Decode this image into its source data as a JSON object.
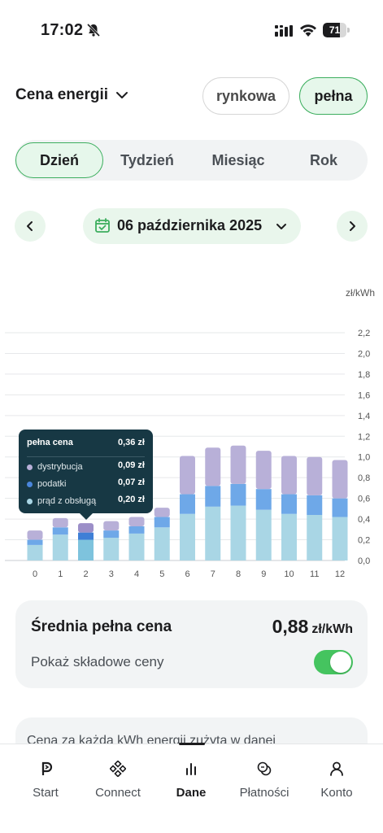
{
  "status_bar": {
    "time": "17:02",
    "battery": "71",
    "battery_fraction": 0.71
  },
  "header": {
    "title": "Cena energii",
    "price_modes": [
      {
        "label": "rynkowa",
        "selected": false
      },
      {
        "label": "pełna",
        "selected": true
      }
    ]
  },
  "period_tabs": [
    {
      "label": "Dzień",
      "selected": true
    },
    {
      "label": "Tydzień",
      "selected": false
    },
    {
      "label": "Miesiąc",
      "selected": false
    },
    {
      "label": "Rok",
      "selected": false
    }
  ],
  "date_nav": {
    "date": "06 października 2025"
  },
  "chart_data": {
    "type": "bar",
    "stacked": true,
    "unit": "zł/kWh",
    "categories": [
      "0",
      "1",
      "2",
      "3",
      "4",
      "5",
      "6",
      "7",
      "8",
      "9",
      "10",
      "11",
      "12"
    ],
    "ylim": [
      0,
      2.2
    ],
    "y_ticks": [
      "2,2",
      "2,0",
      "1,8",
      "1,6",
      "1,4",
      "1,2",
      "1,0",
      "0,8",
      "0,6",
      "0,4",
      "0,2",
      "0,0"
    ],
    "y_tick_values": [
      2.2,
      2.0,
      1.8,
      1.6,
      1.4,
      1.2,
      1.0,
      0.8,
      0.6,
      0.4,
      0.2,
      0.0
    ],
    "grid": true,
    "highlighted_index": 2,
    "series": [
      {
        "name": "prąd z obsługą",
        "color": "#a9d6e5",
        "highlight_color": "#7ec3dd",
        "values": [
          0.15,
          0.25,
          0.2,
          0.22,
          0.26,
          0.32,
          0.45,
          0.52,
          0.53,
          0.49,
          0.45,
          0.44,
          0.42
        ]
      },
      {
        "name": "podatki",
        "color": "#6ea8e8",
        "highlight_color": "#3f7fd6",
        "values": [
          0.05,
          0.07,
          0.07,
          0.07,
          0.07,
          0.1,
          0.19,
          0.2,
          0.21,
          0.2,
          0.19,
          0.19,
          0.18
        ]
      },
      {
        "name": "dystrybucja",
        "color": "#b8b0d8",
        "highlight_color": "#9c8fc8",
        "values": [
          0.09,
          0.09,
          0.09,
          0.09,
          0.09,
          0.09,
          0.37,
          0.37,
          0.37,
          0.37,
          0.37,
          0.37,
          0.37
        ]
      }
    ]
  },
  "tooltip": {
    "title": "pełna cena",
    "total": "0,36 zł",
    "rows": [
      {
        "label": "dystrybucja",
        "value": "0,09 zł",
        "color": "#b8b0d8"
      },
      {
        "label": "podatki",
        "value": "0,07 zł",
        "color": "#4a86dc"
      },
      {
        "label": "prąd z obsługą",
        "value": "0,20 zł",
        "color": "#a9d6e5"
      }
    ]
  },
  "average": {
    "title": "Średnia pełna cena",
    "value": "0,88",
    "unit": "zł/kWh",
    "toggle_label": "Pokaż składowe ceny",
    "toggle_on": true
  },
  "info": {
    "text": "Cena za każdą kWh energii zużytą w danej"
  },
  "tabbar": [
    {
      "label": "Start",
      "icon": "start-icon",
      "active": false
    },
    {
      "label": "Connect",
      "icon": "connect-icon",
      "active": false
    },
    {
      "label": "Dane",
      "icon": "chart-icon",
      "active": true
    },
    {
      "label": "Płatności",
      "icon": "payments-icon",
      "active": false
    },
    {
      "label": "Konto",
      "icon": "account-icon",
      "active": false
    }
  ],
  "colors": {
    "accent": "#3cae5e",
    "accent_bg": "#e6f7eb",
    "toggle": "#45c45f",
    "tooltip_bg": "#173844"
  }
}
